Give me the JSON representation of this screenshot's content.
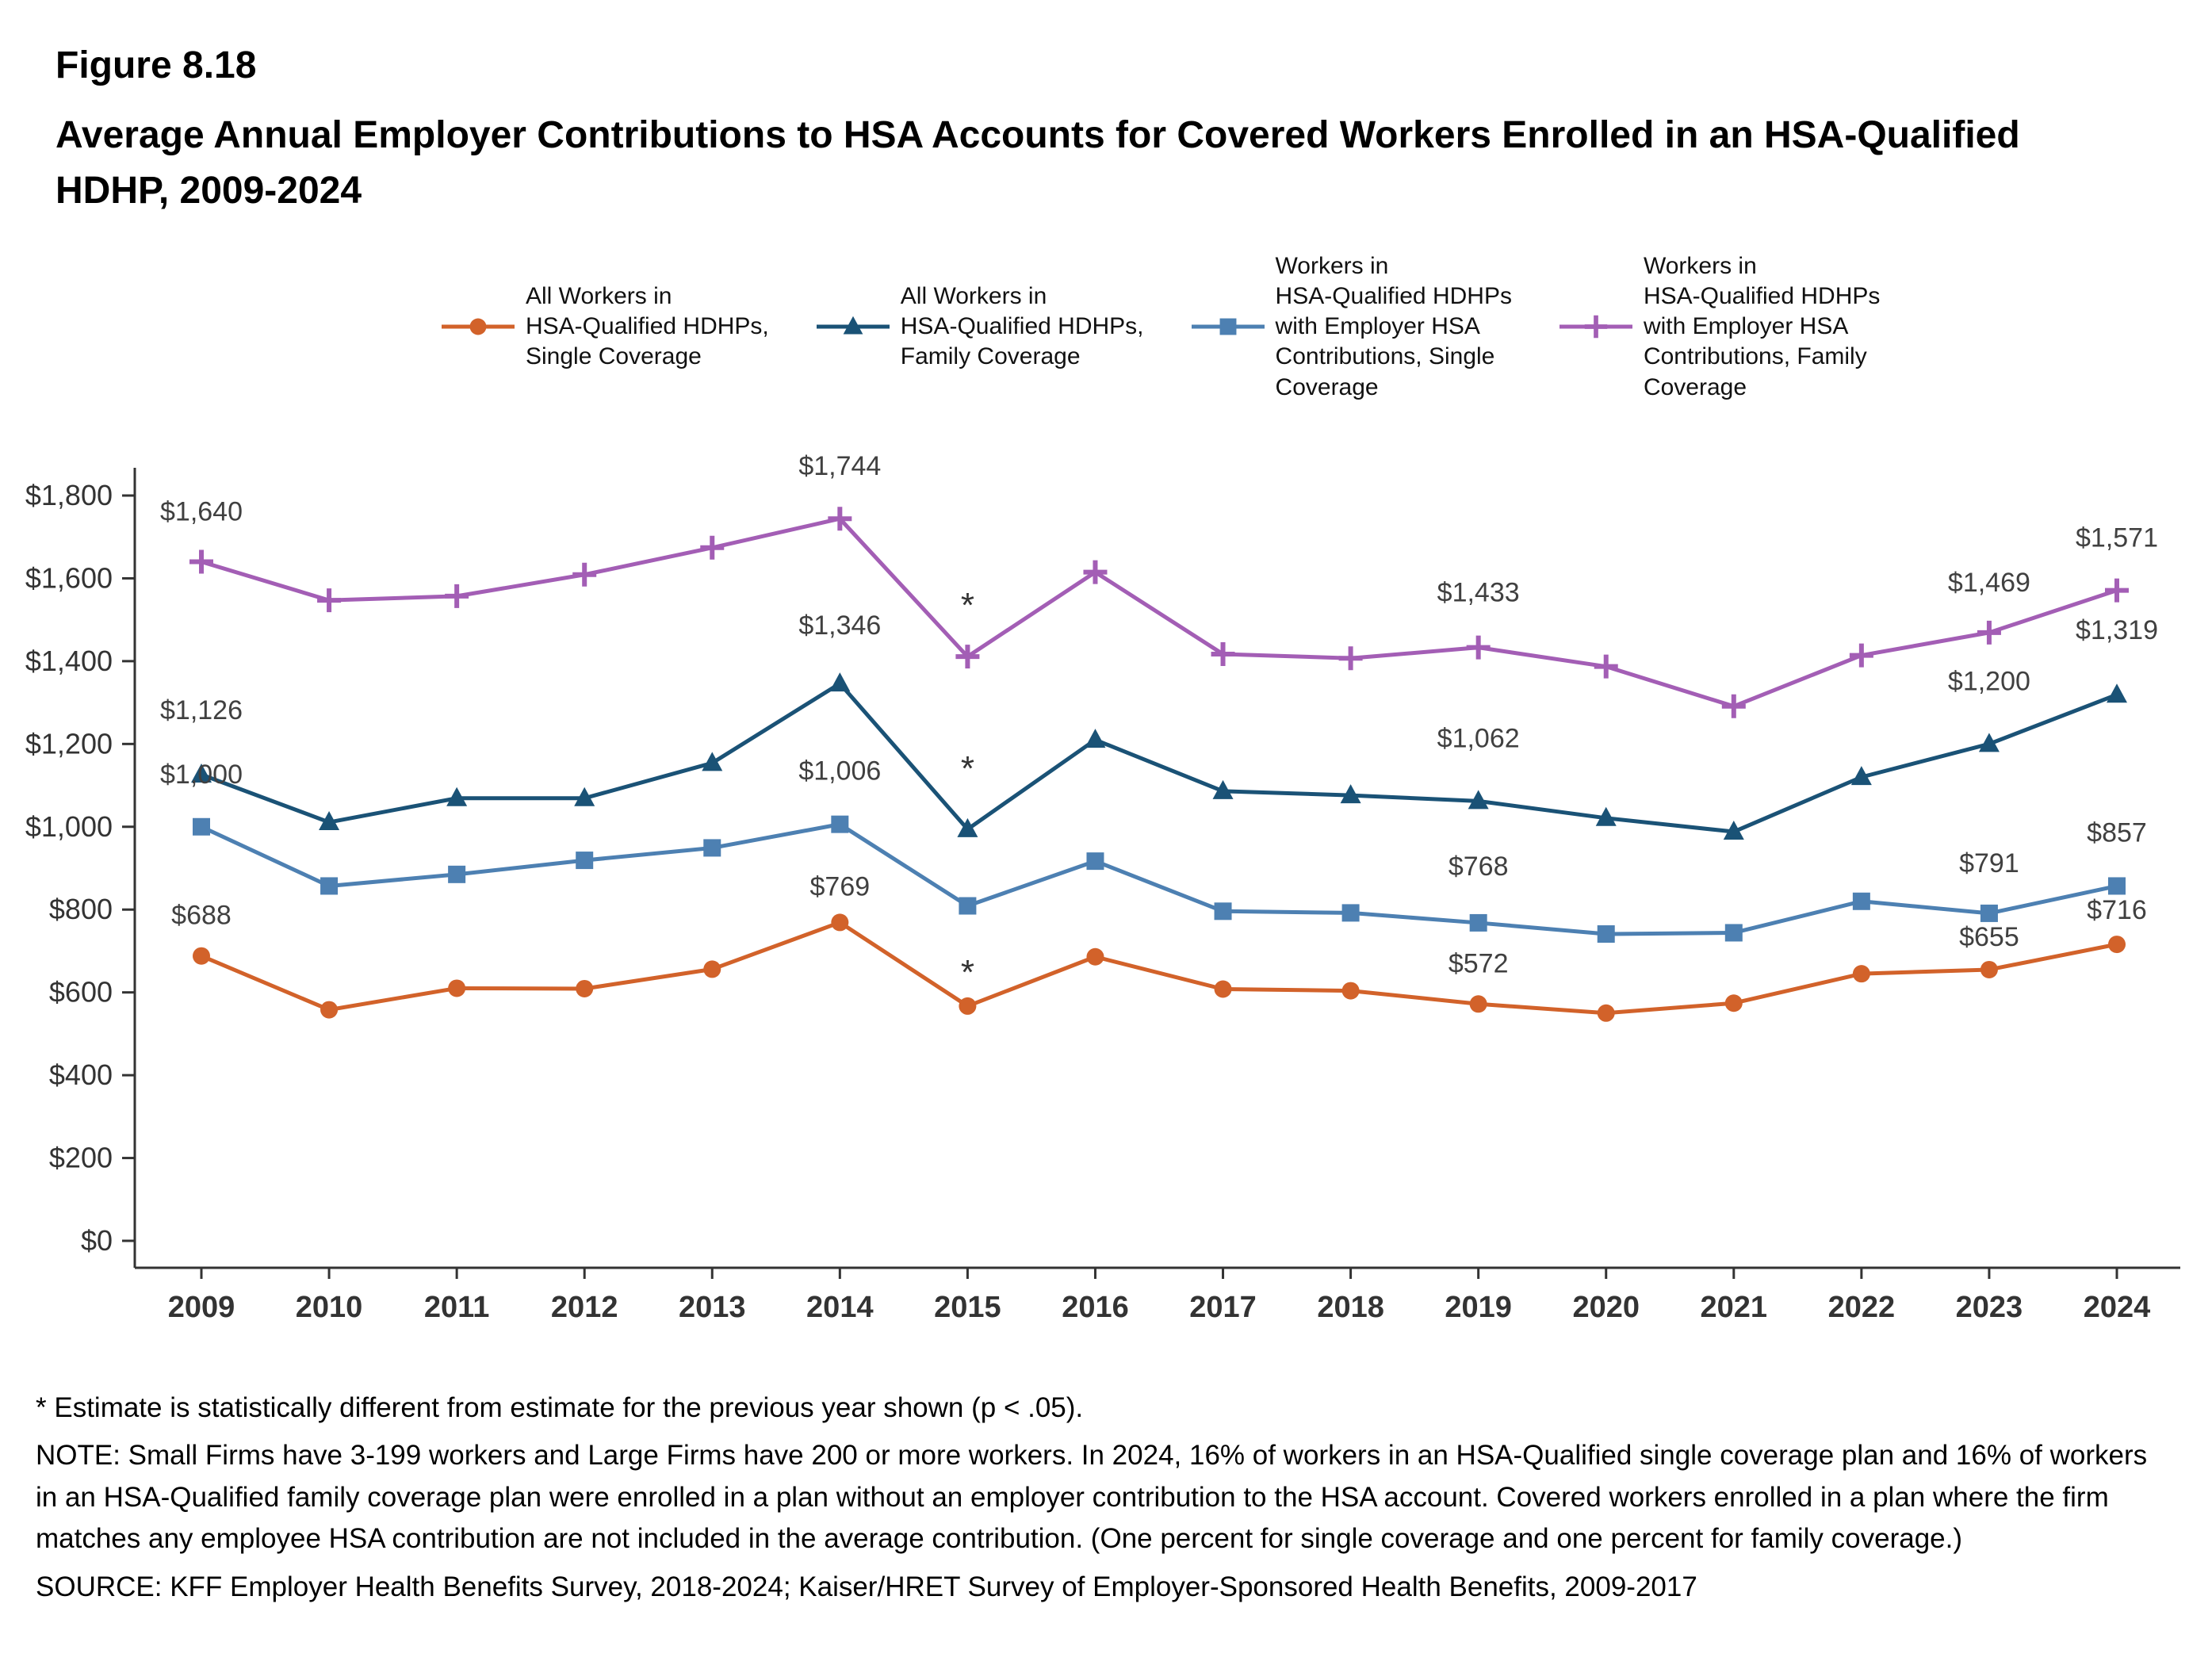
{
  "figure": {
    "label": "Figure 8.18",
    "title": "Average Annual Employer Contributions to HSA Accounts for Covered Workers Enrolled in an HSA-Qualified HDHP, 2009-2024"
  },
  "chart_data": {
    "type": "line",
    "x": [
      "2009",
      "2010",
      "2011",
      "2012",
      "2013",
      "2014",
      "2015",
      "2016",
      "2017",
      "2018",
      "2019",
      "2020",
      "2021",
      "2022",
      "2023",
      "2024"
    ],
    "ylim": [
      0,
      1800
    ],
    "grid": false,
    "legend_position": "top",
    "axis_color": "#333333",
    "label_color": "#404040",
    "yticks": [
      0,
      200,
      400,
      600,
      800,
      1000,
      1200,
      1400,
      1600,
      1800
    ],
    "ytick_labels": [
      "$0",
      "$200",
      "$400",
      "$600",
      "$800",
      "$1,000",
      "$1,200",
      "$1,400",
      "$1,600",
      "$1,800"
    ],
    "series": [
      {
        "name": "All Workers in HSA-Qualified HDHPs, Single Coverage",
        "legend_label": "All Workers in\nHSA-Qualified HDHPs,\nSingle Coverage",
        "color": "#D2622A",
        "marker": "circle",
        "values": [
          688,
          558,
          610,
          609,
          656,
          769,
          567,
          686,
          608,
          604,
          572,
          550,
          574,
          645,
          655,
          716
        ]
      },
      {
        "name": "All Workers in HSA-Qualified HDHPs, Family Coverage",
        "legend_label": "All Workers in\nHSA-Qualified HDHPs,\nFamily Coverage",
        "color": "#1A5276",
        "marker": "triangle",
        "values": [
          1126,
          1011,
          1069,
          1069,
          1154,
          1346,
          994,
          1210,
          1086,
          1076,
          1062,
          1021,
          988,
          1120,
          1200,
          1319
        ]
      },
      {
        "name": "Workers in HSA-Qualified HDHPs with Employer HSA Contributions, Single Coverage",
        "legend_label": "Workers in\nHSA-Qualified HDHPs\nwith Employer HSA\nContributions, Single\nCoverage",
        "color": "#4D80B2",
        "marker": "square",
        "values": [
          1000,
          857,
          885,
          919,
          949,
          1006,
          809,
          917,
          796,
          792,
          768,
          741,
          744,
          820,
          791,
          857
        ]
      },
      {
        "name": "Workers in HSA-Qualified HDHPs with Employer HSA Contributions, Family Coverage",
        "legend_label": "Workers in\nHSA-Qualified HDHPs\nwith Employer HSA\nContributions, Family\nCoverage",
        "color": "#A35EB5",
        "marker": "plus",
        "values": [
          1640,
          1547,
          1557,
          1609,
          1674,
          1744,
          1411,
          1615,
          1417,
          1407,
          1433,
          1387,
          1291,
          1414,
          1469,
          1571
        ]
      }
    ],
    "point_labels": [
      {
        "series": 3,
        "x": "2009",
        "text": "$1,640",
        "dy": -52
      },
      {
        "series": 3,
        "x": "2014",
        "text": "$1,744",
        "dy": -55
      },
      {
        "series": 3,
        "x": "2019",
        "text": "$1,433",
        "dy": -58
      },
      {
        "series": 3,
        "x": "2023",
        "text": "$1,469",
        "dy": -52
      },
      {
        "series": 3,
        "x": "2024",
        "text": "$1,571",
        "dy": -55
      },
      {
        "series": 1,
        "x": "2009",
        "text": "$1,126",
        "dy": -70
      },
      {
        "series": 1,
        "x": "2014",
        "text": "$1,346",
        "dy": -62
      },
      {
        "series": 1,
        "x": "2019",
        "text": "$1,062",
        "dy": -68
      },
      {
        "series": 1,
        "x": "2023",
        "text": "$1,200",
        "dy": -68
      },
      {
        "series": 1,
        "x": "2024",
        "text": "$1,319",
        "dy": -70
      },
      {
        "series": 2,
        "x": "2009",
        "text": "$1,000",
        "dy": -55
      },
      {
        "series": 2,
        "x": "2014",
        "text": "$1,006",
        "dy": -56
      },
      {
        "series": 2,
        "x": "2019",
        "text": "$768",
        "dy": -60
      },
      {
        "series": 2,
        "x": "2023",
        "text": "$791",
        "dy": -52
      },
      {
        "series": 2,
        "x": "2024",
        "text": "$857",
        "dy": -56
      },
      {
        "series": 0,
        "x": "2009",
        "text": "$688",
        "dy": -40
      },
      {
        "series": 0,
        "x": "2014",
        "text": "$769",
        "dy": -34
      },
      {
        "series": 0,
        "x": "2019",
        "text": "$572",
        "dy": -40
      },
      {
        "series": 0,
        "x": "2023",
        "text": "$655",
        "dy": -30
      },
      {
        "series": 0,
        "x": "2024",
        "text": "$716",
        "dy": -32
      }
    ],
    "significance_markers": [
      {
        "series": 3,
        "x": "2015",
        "text": "*",
        "dy": -50
      },
      {
        "series": 1,
        "x": "2015",
        "text": "*",
        "dy": -62
      },
      {
        "series": 0,
        "x": "2015",
        "text": "*",
        "dy": -28
      }
    ]
  },
  "footnotes": {
    "asterisk": "* Estimate is statistically different from estimate for the previous year shown (p < .05).",
    "note": "NOTE: Small Firms have 3-199 workers and Large Firms have 200 or more workers. In 2024, 16% of workers in an HSA-Qualified single coverage plan and 16% of workers in an HSA-Qualified family coverage plan were enrolled in a plan without an employer contribution to the HSA account. Covered workers enrolled in a plan where the firm matches any employee HSA contribution are not included in the average contribution. (One percent for single coverage and one percent for family coverage.)",
    "source": "SOURCE: KFF Employer Health Benefits Survey, 2018-2024; Kaiser/HRET Survey of Employer-Sponsored Health Benefits, 2009-2017"
  }
}
